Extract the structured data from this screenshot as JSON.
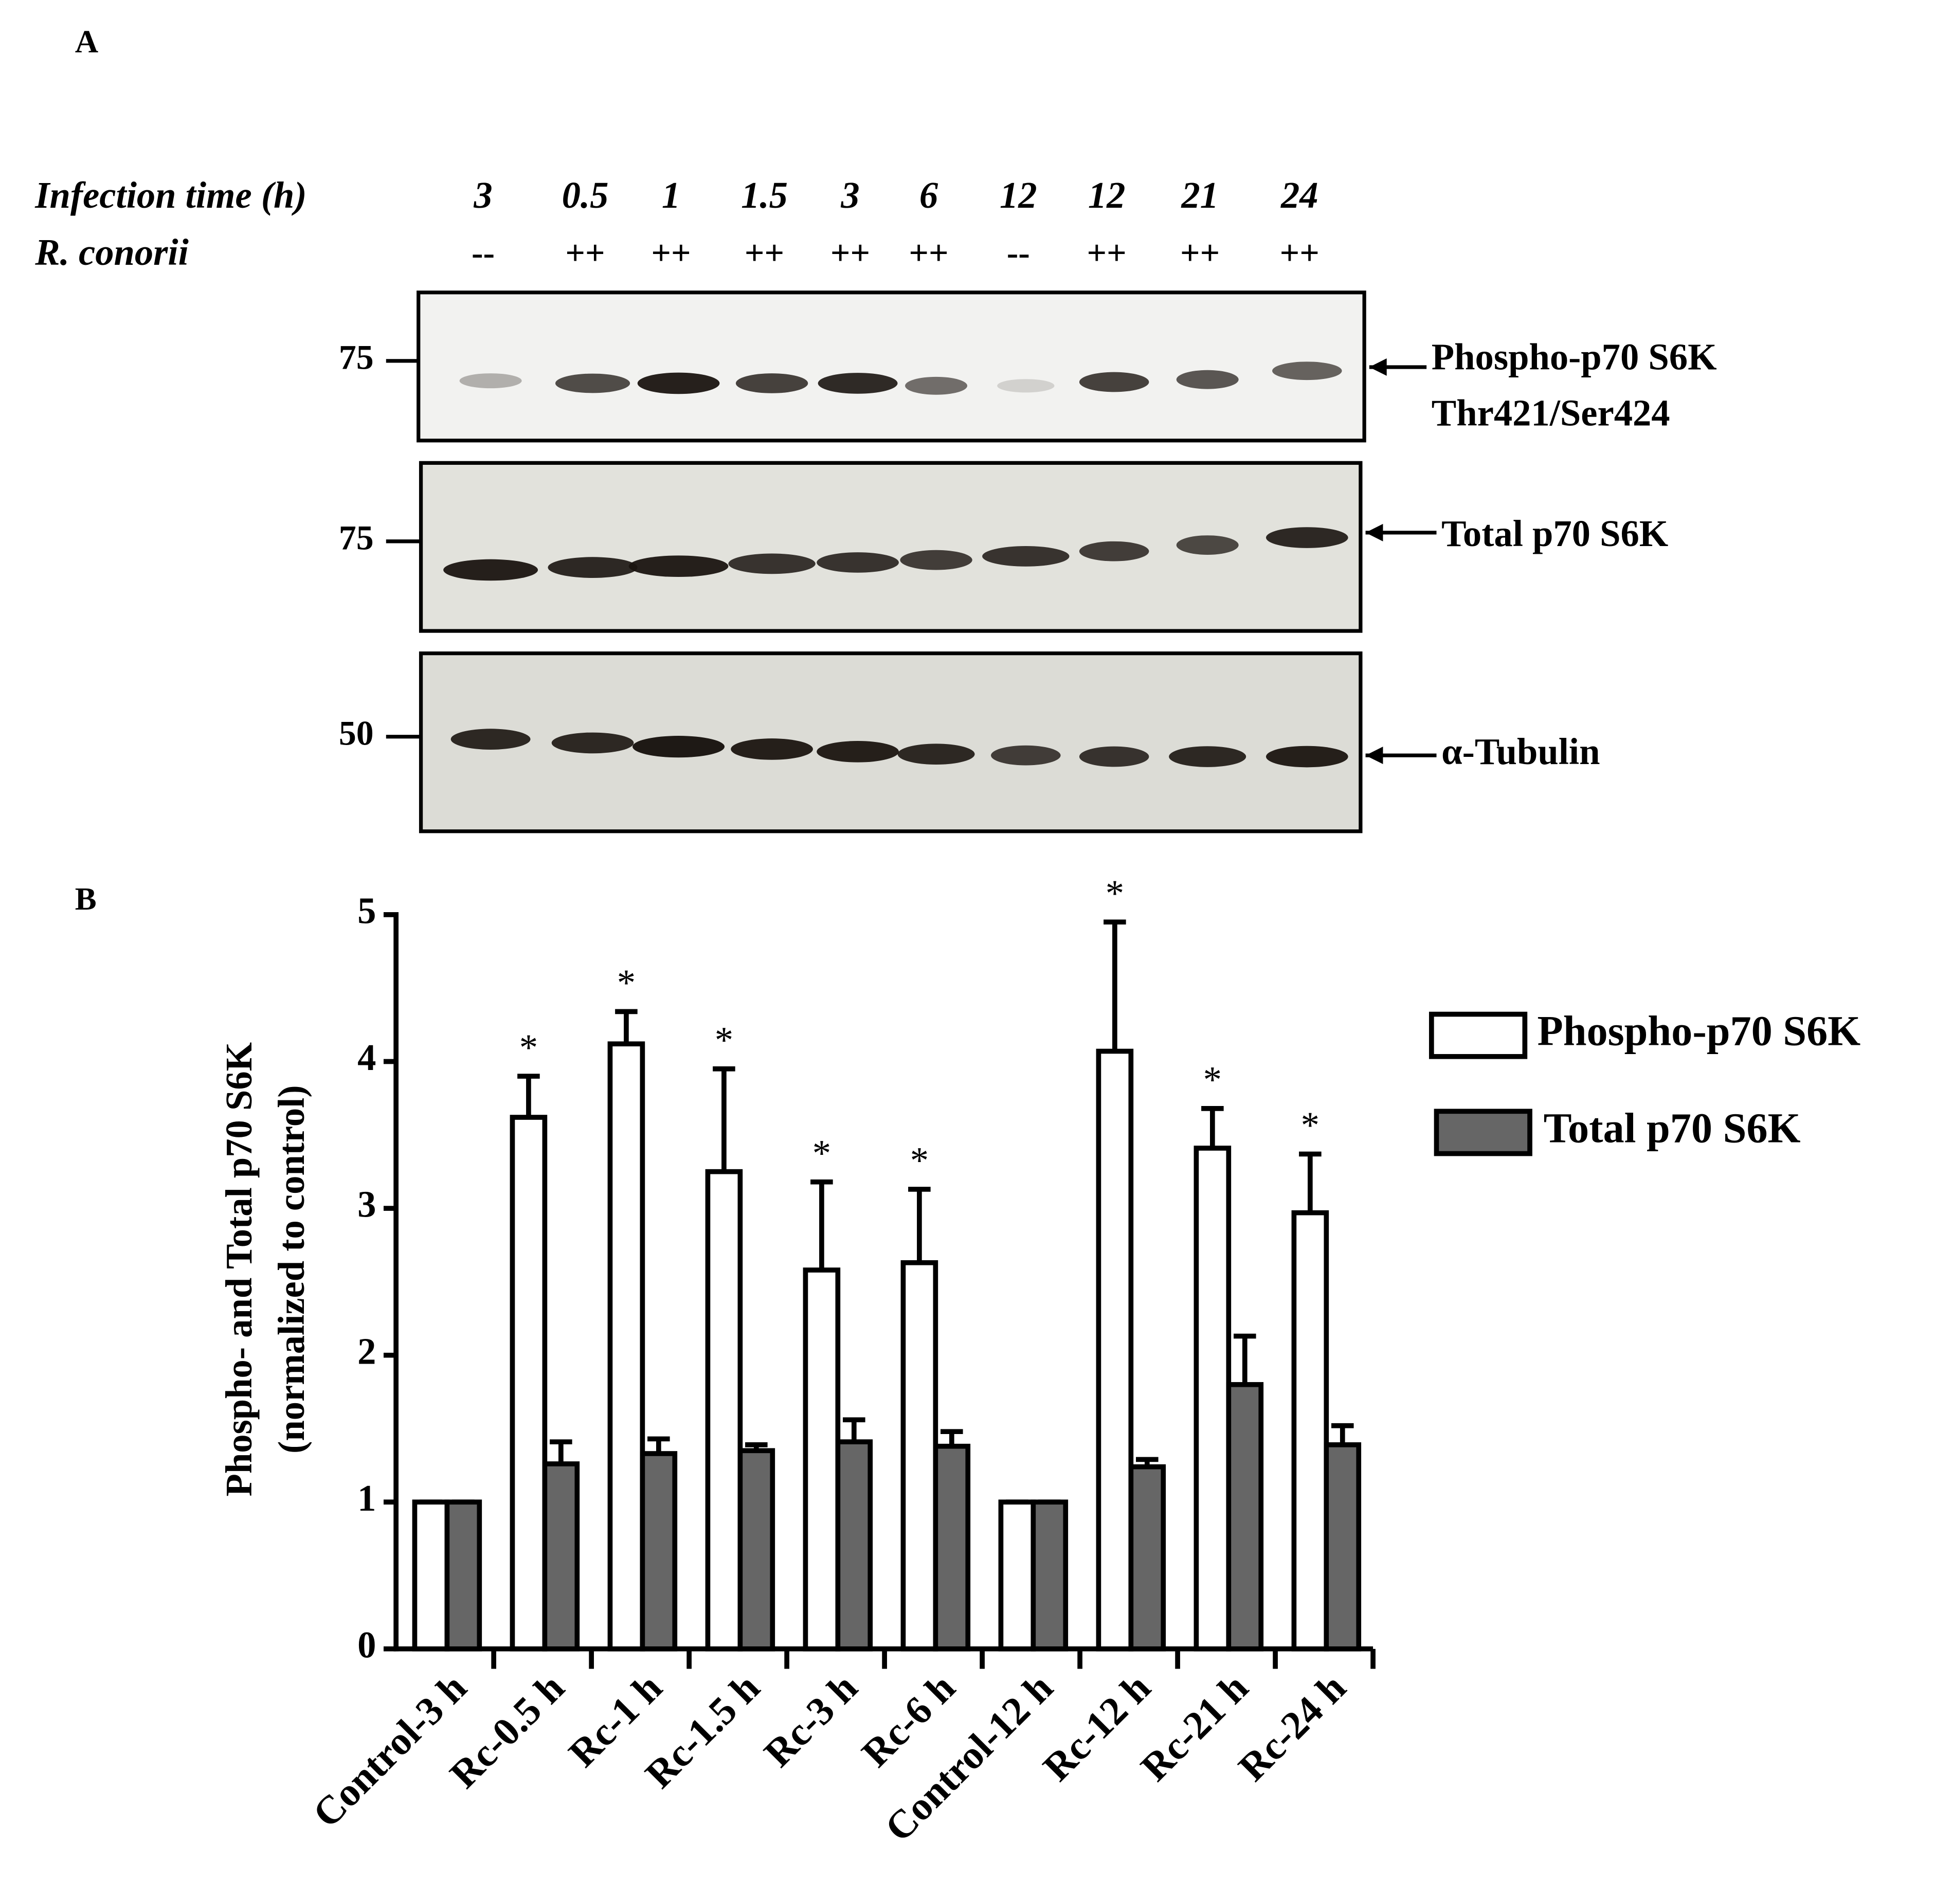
{
  "panel_a": {
    "label": "A",
    "row_labels": [
      "Infection time (h)",
      "R. conorii"
    ],
    "infection_time": [
      "3",
      "0.5",
      "1",
      "1.5",
      "3",
      "6",
      "12",
      "12",
      "21",
      "24"
    ],
    "r_conorii": [
      "--",
      "++",
      "++",
      "++",
      "++",
      "++",
      "--",
      "++",
      "++",
      "++"
    ],
    "blots": [
      {
        "marker": "75",
        "name": [
          "Phospho-p70 S6K",
          "Thr421/Ser424"
        ]
      },
      {
        "marker": "75",
        "name": [
          "Total p70 S6K"
        ]
      },
      {
        "marker": "50",
        "name": [
          "α-Tubulin"
        ]
      }
    ]
  },
  "chart_data": {
    "type": "bar",
    "panel_label": "B",
    "ylabel": [
      "Phospho- and Total p70 S6K",
      "(normalized to control)"
    ],
    "categories": [
      "Control-3 h",
      "Rc-0.5 h",
      "Rc-1 h",
      "Rc-1.5 h",
      "Rc-3 h",
      "Rc-6 h",
      "Control-12 h",
      "Rc-12 h",
      "Rc-21 h",
      "Rc-24 h"
    ],
    "series": [
      {
        "name": "Phospho-p70 S6K",
        "color": "#ffffff",
        "values": [
          1,
          3.62,
          4.12,
          3.25,
          2.58,
          2.63,
          1,
          4.07,
          3.41,
          2.97
        ],
        "errors": [
          0,
          0.28,
          0.22,
          0.7,
          0.6,
          0.5,
          0,
          0.88,
          0.27,
          0.4
        ]
      },
      {
        "name": "Total p70 S6K",
        "color": "#666666",
        "values": [
          1,
          1.26,
          1.33,
          1.35,
          1.41,
          1.38,
          1,
          1.24,
          1.8,
          1.39
        ],
        "errors": [
          0,
          0.15,
          0.1,
          0.04,
          0.15,
          0.1,
          0,
          0.05,
          0.33,
          0.13
        ]
      }
    ],
    "significance": [
      null,
      "*",
      "*",
      "*",
      "*",
      "*",
      null,
      "*",
      "*",
      "*"
    ],
    "ylim": [
      0,
      5
    ],
    "yticks": [
      0,
      1,
      2,
      3,
      4,
      5
    ],
    "legend": "right"
  }
}
